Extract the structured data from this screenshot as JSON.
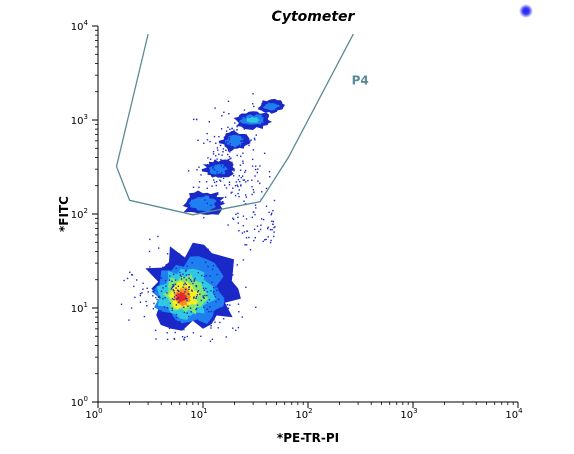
{
  "chart_data": {
    "type": "heatmap",
    "subtype": "flow-cytometry density plot",
    "title": "Cytometer",
    "xlabel": "*PE-TR-PI",
    "ylabel": "*FITC",
    "x_scale": "log",
    "y_scale": "log",
    "xlim": [
      1,
      10000
    ],
    "ylim": [
      1,
      10000
    ],
    "x_ticks": [
      {
        "base": "10",
        "exp": "0",
        "value": 1
      },
      {
        "base": "10",
        "exp": "1",
        "value": 10
      },
      {
        "base": "10",
        "exp": "2",
        "value": 100
      },
      {
        "base": "10",
        "exp": "3",
        "value": 1000
      },
      {
        "base": "10",
        "exp": "4",
        "value": 10000
      }
    ],
    "y_ticks": [
      {
        "base": "10",
        "exp": "0",
        "value": 1
      },
      {
        "base": "10",
        "exp": "1",
        "value": 10
      },
      {
        "base": "10",
        "exp": "2",
        "value": 100
      },
      {
        "base": "10",
        "exp": "3",
        "value": 1000
      },
      {
        "base": "10",
        "exp": "4",
        "value": 10000
      }
    ],
    "gate": {
      "label": "P4",
      "color": "#5a8a96",
      "label_at": [
        260,
        2400
      ],
      "vertices": [
        [
          3.0,
          8200
        ],
        [
          1.5,
          320
        ],
        [
          2.0,
          140
        ],
        [
          8.0,
          98
        ],
        [
          35,
          135
        ],
        [
          65,
          400
        ],
        [
          270,
          8200
        ]
      ]
    },
    "density_levels": [
      {
        "level": 1,
        "color": "#1a28c8"
      },
      {
        "level": 2,
        "color": "#1f7ff0"
      },
      {
        "level": 3,
        "color": "#2fc8e0"
      },
      {
        "level": 4,
        "color": "#7fe870"
      },
      {
        "level": 5,
        "color": "#f4f020"
      },
      {
        "level": 6,
        "color": "#f89020"
      },
      {
        "level": 7,
        "color": "#e82828"
      }
    ],
    "regions": [
      {
        "level": 1,
        "center": [
          8.0,
          16.0
        ],
        "spread": [
          0.42,
          0.42
        ]
      },
      {
        "level": 2,
        "center": [
          7.5,
          15.0
        ],
        "spread": [
          0.33,
          0.34
        ]
      },
      {
        "level": 3,
        "center": [
          7.0,
          14.5
        ],
        "spread": [
          0.26,
          0.27
        ]
      },
      {
        "level": 4,
        "center": [
          6.8,
          14.0
        ],
        "spread": [
          0.19,
          0.2
        ]
      },
      {
        "level": 5,
        "center": [
          6.6,
          13.5
        ],
        "spread": [
          0.13,
          0.14
        ]
      },
      {
        "level": 6,
        "center": [
          6.4,
          13.2
        ],
        "spread": [
          0.08,
          0.09
        ]
      },
      {
        "level": 7,
        "center": [
          6.2,
          13.0
        ],
        "spread": [
          0.05,
          0.05
        ]
      },
      {
        "level": 1,
        "center": [
          10.0,
          130.0
        ],
        "spread": [
          0.2,
          0.13
        ]
      },
      {
        "level": 2,
        "center": [
          10.0,
          130.0
        ],
        "spread": [
          0.12,
          0.08
        ]
      },
      {
        "level": 1,
        "center": [
          14.0,
          300.0
        ],
        "spread": [
          0.14,
          0.1
        ]
      },
      {
        "level": 2,
        "center": [
          14.0,
          300.0
        ],
        "spread": [
          0.08,
          0.06
        ]
      },
      {
        "level": 1,
        "center": [
          20.0,
          600.0
        ],
        "spread": [
          0.13,
          0.1
        ]
      },
      {
        "level": 2,
        "center": [
          20.0,
          600.0
        ],
        "spread": [
          0.08,
          0.06
        ]
      },
      {
        "level": 1,
        "center": [
          30.0,
          1000.0
        ],
        "spread": [
          0.18,
          0.09
        ]
      },
      {
        "level": 2,
        "center": [
          30.0,
          1000.0
        ],
        "spread": [
          0.12,
          0.06
        ]
      },
      {
        "level": 3,
        "center": [
          30.0,
          1000.0
        ],
        "spread": [
          0.06,
          0.03
        ]
      },
      {
        "level": 1,
        "center": [
          45.0,
          1400.0
        ],
        "spread": [
          0.12,
          0.07
        ]
      },
      {
        "level": 2,
        "center": [
          45.0,
          1400.0
        ],
        "spread": [
          0.07,
          0.04
        ]
      }
    ],
    "indicator_dot_color": "#3a3af0"
  }
}
